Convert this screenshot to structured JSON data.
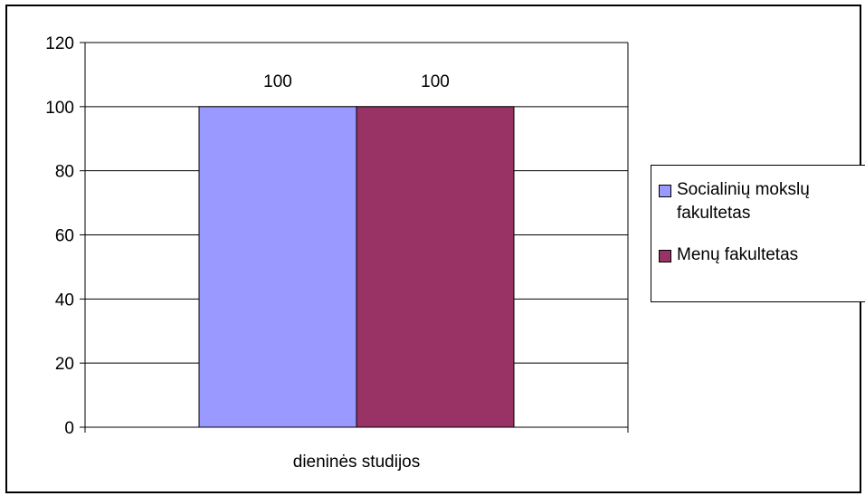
{
  "chart_data": {
    "type": "bar",
    "categories": [
      "dieninės studijos"
    ],
    "series": [
      {
        "name": "Socialinių mokslų\nfakultetas",
        "values": [
          100
        ],
        "color": "#9999ff"
      },
      {
        "name": "Menų fakultetas",
        "values": [
          100
        ],
        "color": "#993366"
      }
    ],
    "data_labels": [
      "100",
      "100"
    ],
    "yticks": [
      "0",
      "20",
      "40",
      "60",
      "80",
      "100",
      "120"
    ],
    "ylim": [
      0,
      120
    ],
    "title": "",
    "xlabel": "",
    "ylabel": "",
    "grid": true,
    "legend_position": "right"
  }
}
